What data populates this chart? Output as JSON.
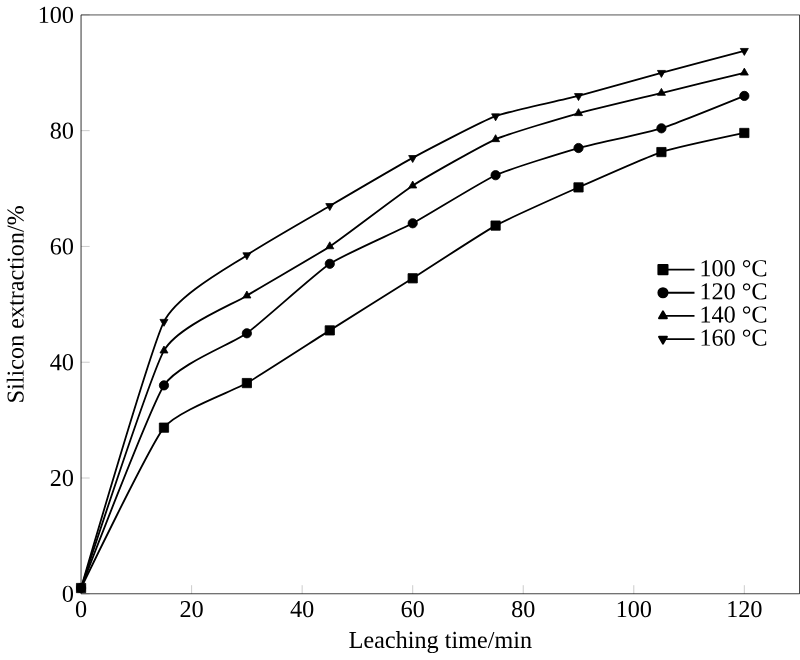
{
  "chart_data": {
    "type": "line",
    "xlabel": "Leaching time/min",
    "ylabel": "Silicon extraction/%",
    "x": [
      0,
      15,
      30,
      45,
      60,
      75,
      90,
      105,
      120
    ],
    "xlim": [
      0,
      130
    ],
    "xticks": [
      0,
      20,
      40,
      60,
      80,
      100,
      120
    ],
    "ylim": [
      0,
      100
    ],
    "yticks": [
      0,
      20,
      40,
      60,
      80,
      100
    ],
    "legend": "right",
    "grid": false,
    "series": [
      {
        "name": "100 °C",
        "color": "#000000",
        "marker": "square",
        "values": [
          1,
          28.7,
          36.4,
          45.5,
          54.5,
          63.6,
          70.2,
          76.3,
          79.6
        ]
      },
      {
        "name": "120 °C",
        "color": "#000000",
        "marker": "circle",
        "values": [
          1,
          36,
          45,
          57,
          64,
          72.3,
          77,
          80.4,
          86
        ]
      },
      {
        "name": "140 °C",
        "color": "#000000",
        "marker": "triangle",
        "values": [
          1,
          42,
          51.5,
          60,
          70.5,
          78.5,
          83,
          86.5,
          90
        ]
      },
      {
        "name": "160 °C",
        "color": "#000000",
        "marker": "triangle",
        "values": [
          1,
          47,
          58.5,
          67,
          75.3,
          82.5,
          86,
          90,
          93.8
        ]
      }
    ]
  }
}
